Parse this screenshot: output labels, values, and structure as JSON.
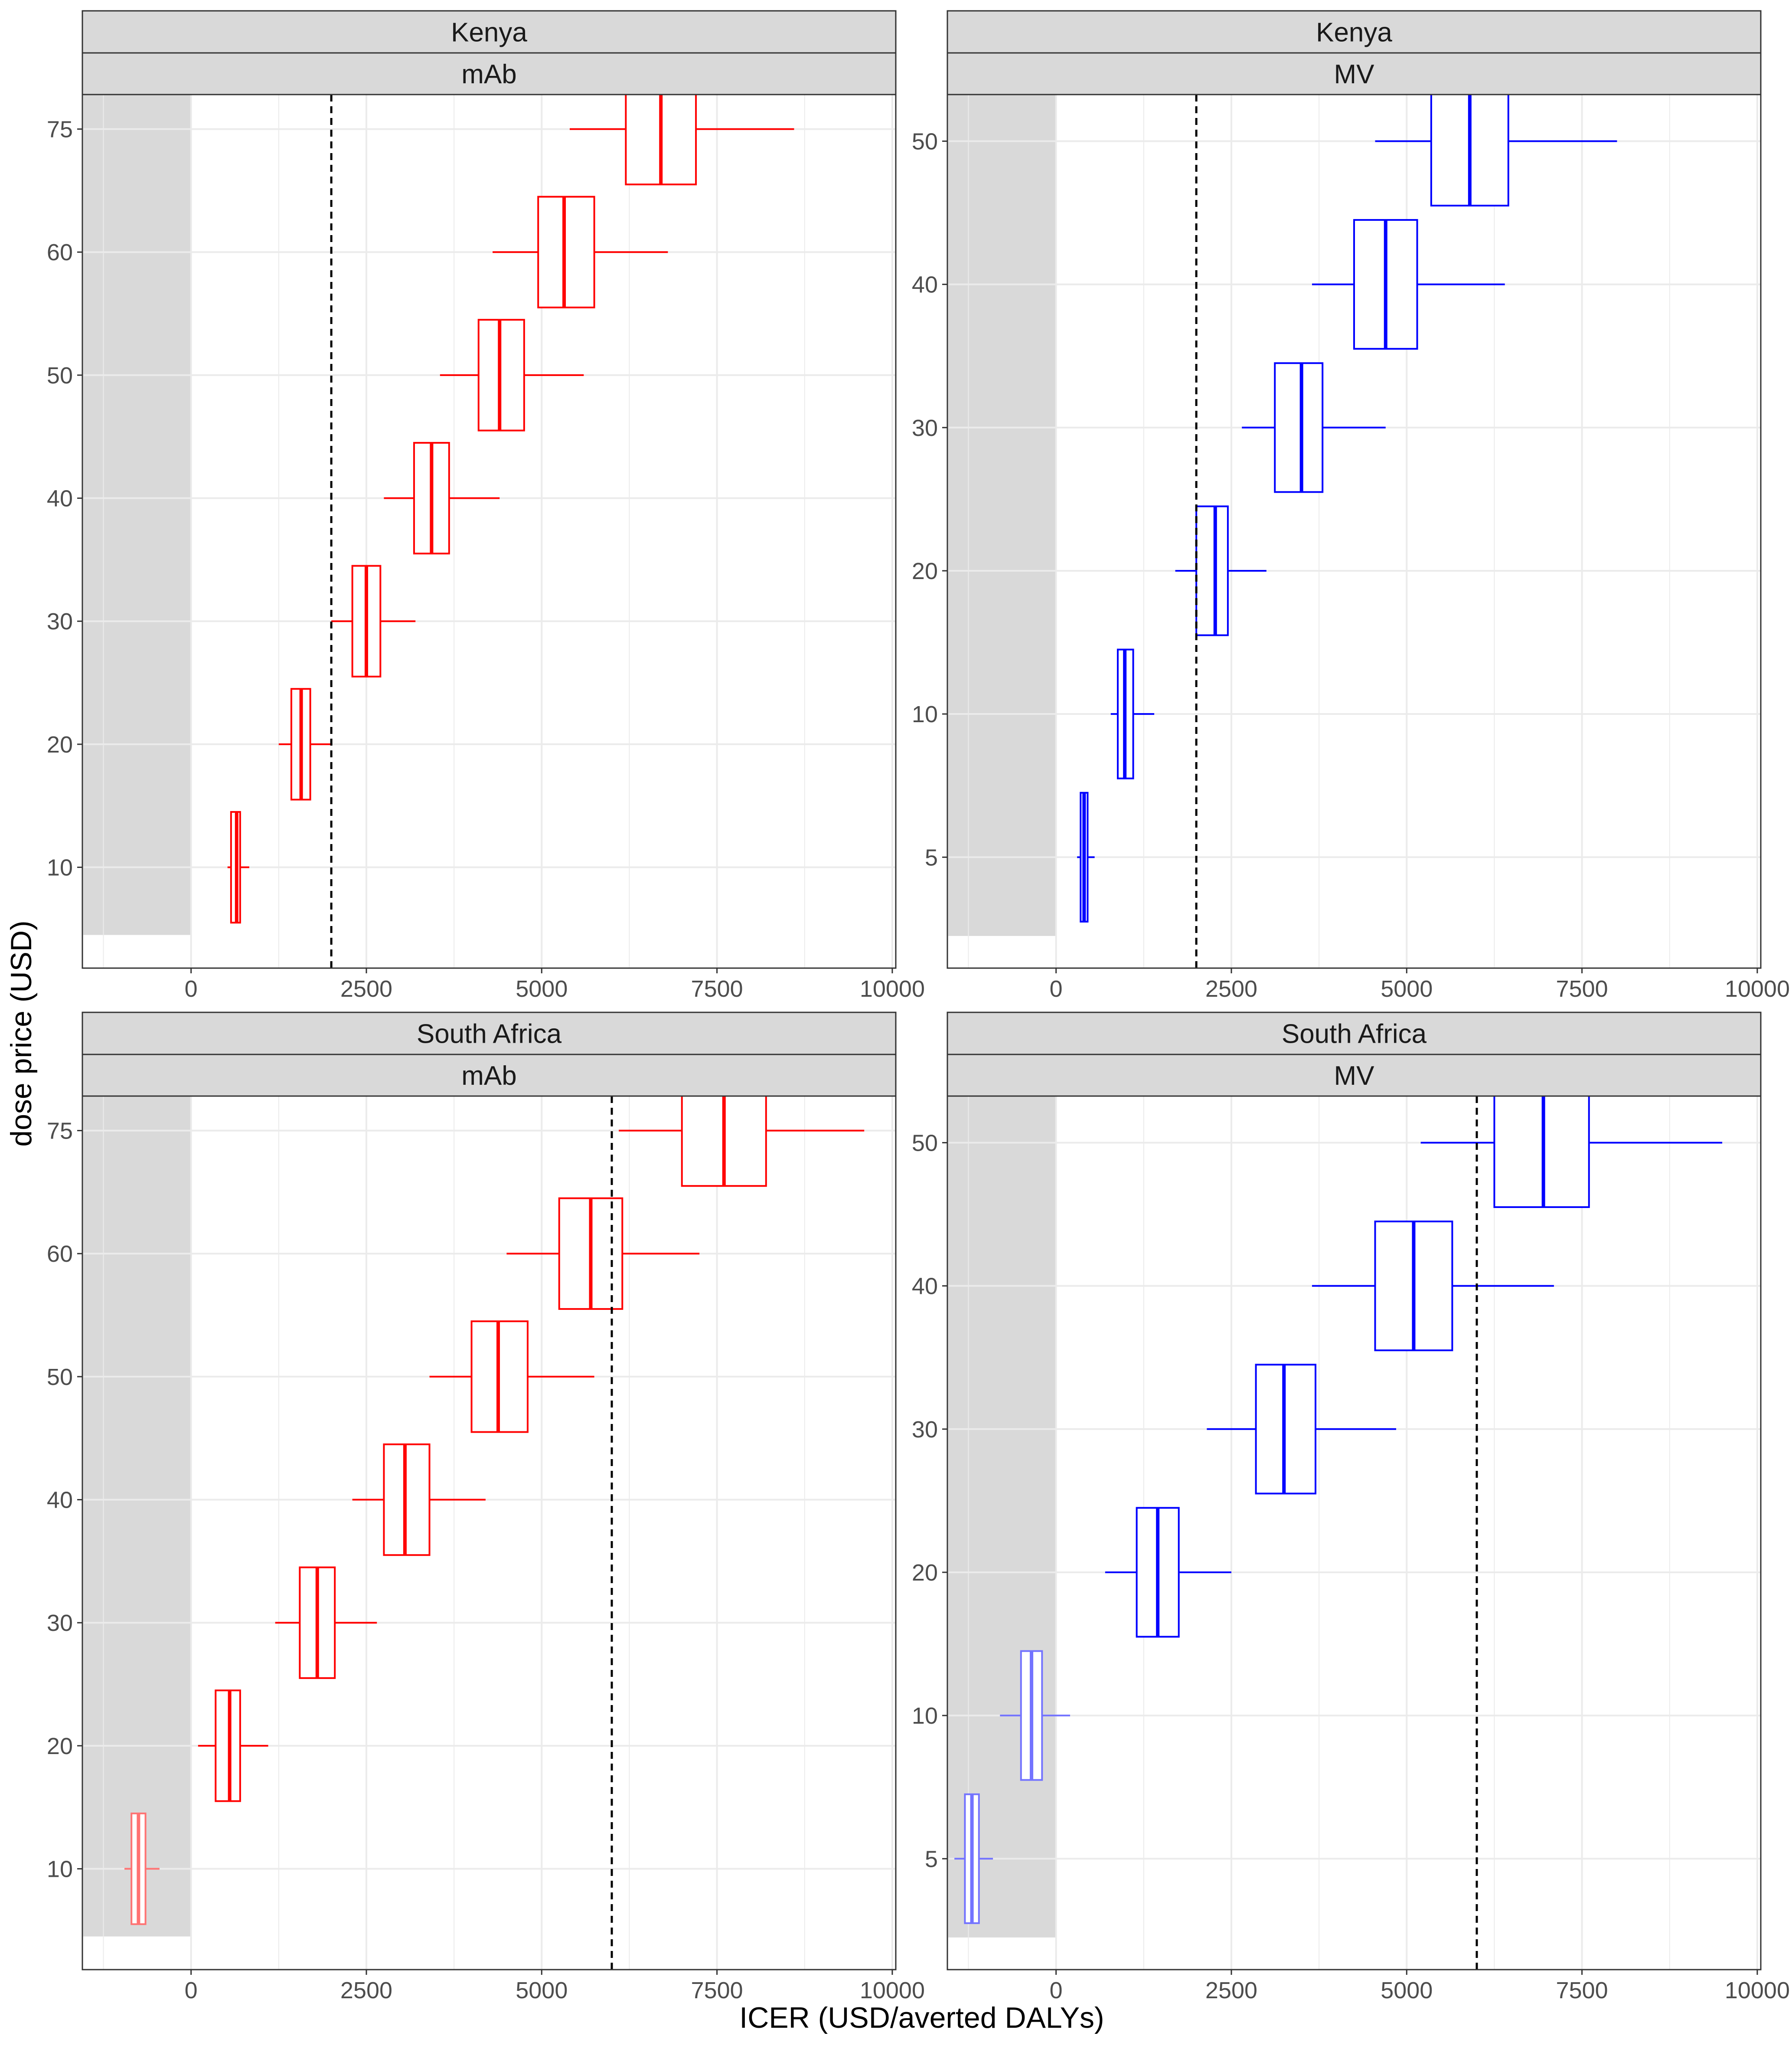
{
  "chart_data": {
    "type": "boxplot",
    "layout": "2x2 facet grid",
    "xlabel": "ICER (USD/averted DALYs)",
    "ylabel": "dose price (USD)",
    "xlim": [
      -1550,
      10050
    ],
    "xticks": [
      0,
      2500,
      5000,
      7500,
      10000
    ],
    "x_tick_labels": [
      "0",
      "2500",
      "5000",
      "7500",
      "10000"
    ],
    "grid": true,
    "legend": "none",
    "colors": {
      "mAb": "#ff0000",
      "MV": "#0000ff",
      "strip_fill": "#d9d9d9",
      "cost_saving_band": "#d9d9d9",
      "grid": "#ebebeb",
      "panel_border": "#333333"
    },
    "panels": [
      {
        "country": "Kenya",
        "product": "mAb",
        "color": "#ff0000",
        "threshold": 2000,
        "categories": [
          "10",
          "20",
          "30",
          "40",
          "50",
          "60",
          "75"
        ],
        "boxes": [
          {
            "category": "10",
            "whisker_low": 520,
            "q1": 570,
            "median": 650,
            "q3": 700,
            "whisker_high": 830
          },
          {
            "category": "20",
            "whisker_low": 1250,
            "q1": 1430,
            "median": 1570,
            "q3": 1700,
            "whisker_high": 2000
          },
          {
            "category": "30",
            "whisker_low": 2000,
            "q1": 2300,
            "median": 2500,
            "q3": 2700,
            "whisker_high": 3200
          },
          {
            "category": "40",
            "whisker_low": 2750,
            "q1": 3180,
            "median": 3430,
            "q3": 3680,
            "whisker_high": 4400
          },
          {
            "category": "50",
            "whisker_low": 3550,
            "q1": 4100,
            "median": 4400,
            "q3": 4750,
            "whisker_high": 5600
          },
          {
            "category": "60",
            "whisker_low": 4300,
            "q1": 4950,
            "median": 5320,
            "q3": 5750,
            "whisker_high": 6800
          },
          {
            "category": "75",
            "whisker_low": 5400,
            "q1": 6200,
            "median": 6700,
            "q3": 7200,
            "whisker_high": 8600
          }
        ]
      },
      {
        "country": "Kenya",
        "product": "MV",
        "color": "#0000ff",
        "threshold": 2000,
        "categories": [
          "5",
          "10",
          "20",
          "30",
          "40",
          "50"
        ],
        "boxes": [
          {
            "category": "5",
            "whisker_low": 300,
            "q1": 350,
            "median": 400,
            "q3": 450,
            "whisker_high": 550
          },
          {
            "category": "10",
            "whisker_low": 780,
            "q1": 880,
            "median": 980,
            "q3": 1100,
            "whisker_high": 1400
          },
          {
            "category": "20",
            "whisker_low": 1700,
            "q1": 2000,
            "median": 2270,
            "q3": 2450,
            "whisker_high": 3000
          },
          {
            "category": "30",
            "whisker_low": 2650,
            "q1": 3120,
            "median": 3500,
            "q3": 3800,
            "whisker_high": 4700
          },
          {
            "category": "40",
            "whisker_low": 3650,
            "q1": 4250,
            "median": 4700,
            "q3": 5150,
            "whisker_high": 6400
          },
          {
            "category": "50",
            "whisker_low": 4550,
            "q1": 5350,
            "median": 5900,
            "q3": 6450,
            "whisker_high": 8000
          }
        ]
      },
      {
        "country": "South Africa",
        "product": "mAb",
        "color": "#ff0000",
        "threshold": 6000,
        "categories": [
          "10",
          "20",
          "30",
          "40",
          "50",
          "60",
          "75"
        ],
        "boxes": [
          {
            "category": "10",
            "whisker_low": -950,
            "q1": -850,
            "median": -750,
            "q3": -650,
            "whisker_high": -450,
            "cost_saving": true
          },
          {
            "category": "20",
            "whisker_low": 100,
            "q1": 350,
            "median": 550,
            "q3": 700,
            "whisker_high": 1100
          },
          {
            "category": "30",
            "whisker_low": 1200,
            "q1": 1550,
            "median": 1800,
            "q3": 2050,
            "whisker_high": 2650
          },
          {
            "category": "40",
            "whisker_low": 2300,
            "q1": 2750,
            "median": 3050,
            "q3": 3400,
            "whisker_high": 4200
          },
          {
            "category": "50",
            "whisker_low": 3400,
            "q1": 4000,
            "median": 4380,
            "q3": 4800,
            "whisker_high": 5750
          },
          {
            "category": "60",
            "whisker_low": 4500,
            "q1": 5250,
            "median": 5700,
            "q3": 6150,
            "whisker_high": 7250
          },
          {
            "category": "75",
            "whisker_low": 6100,
            "q1": 7000,
            "median": 7600,
            "q3": 8200,
            "whisker_high": 9600
          }
        ]
      },
      {
        "country": "South Africa",
        "product": "MV",
        "color": "#0000ff",
        "threshold": 6000,
        "categories": [
          "5",
          "10",
          "20",
          "30",
          "40",
          "50"
        ],
        "boxes": [
          {
            "category": "5",
            "whisker_low": -1450,
            "q1": -1300,
            "median": -1200,
            "q3": -1100,
            "whisker_high": -900,
            "cost_saving": true
          },
          {
            "category": "10",
            "whisker_low": -800,
            "q1": -500,
            "median": -350,
            "q3": -200,
            "whisker_high": 200,
            "cost_saving": true
          },
          {
            "category": "20",
            "whisker_low": 700,
            "q1": 1150,
            "median": 1450,
            "q3": 1750,
            "whisker_high": 2500
          },
          {
            "category": "30",
            "whisker_low": 2150,
            "q1": 2850,
            "median": 3250,
            "q3": 3700,
            "whisker_high": 4850
          },
          {
            "category": "40",
            "whisker_low": 3650,
            "q1": 4550,
            "median": 5100,
            "q3": 5650,
            "whisker_high": 7100
          },
          {
            "category": "50",
            "whisker_low": 5200,
            "q1": 6250,
            "median": 6950,
            "q3": 7600,
            "whisker_high": 9500
          }
        ]
      }
    ]
  }
}
